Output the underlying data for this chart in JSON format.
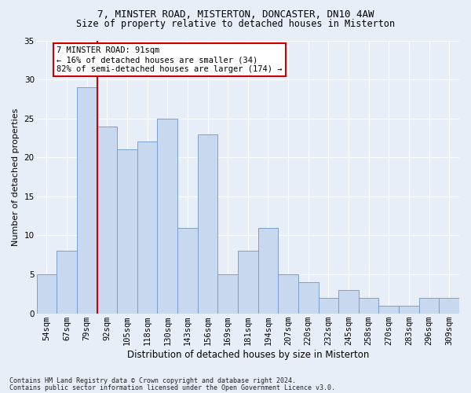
{
  "title1": "7, MINSTER ROAD, MISTERTON, DONCASTER, DN10 4AW",
  "title2": "Size of property relative to detached houses in Misterton",
  "xlabel": "Distribution of detached houses by size in Misterton",
  "ylabel": "Number of detached properties",
  "footer1": "Contains HM Land Registry data © Crown copyright and database right 2024.",
  "footer2": "Contains public sector information licensed under the Open Government Licence v3.0.",
  "categories": [
    "54sqm",
    "67sqm",
    "79sqm",
    "92sqm",
    "105sqm",
    "118sqm",
    "130sqm",
    "143sqm",
    "156sqm",
    "169sqm",
    "181sqm",
    "194sqm",
    "207sqm",
    "220sqm",
    "232sqm",
    "245sqm",
    "258sqm",
    "270sqm",
    "283sqm",
    "296sqm",
    "309sqm"
  ],
  "values": [
    5,
    8,
    29,
    24,
    21,
    22,
    25,
    11,
    23,
    5,
    8,
    11,
    5,
    4,
    2,
    3,
    2,
    1,
    1,
    2,
    2
  ],
  "bar_color": "#c8d8ef",
  "bar_edge_color": "#7aA0cc",
  "vline_index": 2.5,
  "vline_color": "#cc0000",
  "annotation_title": "7 MINSTER ROAD: 91sqm",
  "annotation_line1": "← 16% of detached houses are smaller (34)",
  "annotation_line2": "82% of semi-detached houses are larger (174) →",
  "annotation_box_facecolor": "#ffffff",
  "annotation_box_edgecolor": "#cc0000",
  "ylim": [
    0,
    35
  ],
  "yticks": [
    0,
    5,
    10,
    15,
    20,
    25,
    30,
    35
  ],
  "background_color": "#e8eef8",
  "plot_bg_color": "#e8eef8",
  "grid_color": "#ffffff",
  "title1_fontsize": 9,
  "title2_fontsize": 8.5,
  "ylabel_fontsize": 8,
  "xlabel_fontsize": 8.5,
  "tick_fontsize": 7.5,
  "ann_fontsize": 7.5,
  "footer_fontsize": 6
}
